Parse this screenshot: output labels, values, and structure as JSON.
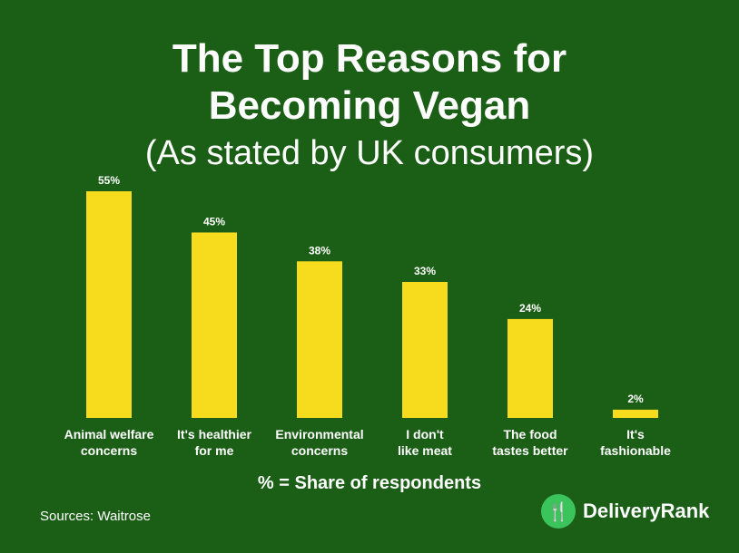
{
  "chart_data": {
    "type": "bar",
    "title": "The Top Reasons for Becoming Vegan",
    "title_lines": [
      "The Top Reasons for",
      "Becoming Vegan"
    ],
    "subtitle": "(As stated by UK consumers)",
    "categories": [
      [
        "Animal welfare",
        "concerns"
      ],
      [
        "It's healthier",
        "for me"
      ],
      [
        "Environmental",
        "concerns"
      ],
      [
        "I don't",
        "like meat"
      ],
      [
        "The food",
        "tastes better"
      ],
      [
        "It's",
        "fashionable"
      ]
    ],
    "values": [
      55,
      45,
      38,
      33,
      24,
      2
    ],
    "value_labels": [
      "55%",
      "45%",
      "38%",
      "33%",
      "24%",
      "2%"
    ],
    "xlabel": "% = Share of respondents",
    "ylim": [
      0,
      55
    ],
    "grid": false,
    "bar_color": "#f7dc1e"
  },
  "source": "Sources: Waitrose",
  "brand": "DeliveryRank"
}
